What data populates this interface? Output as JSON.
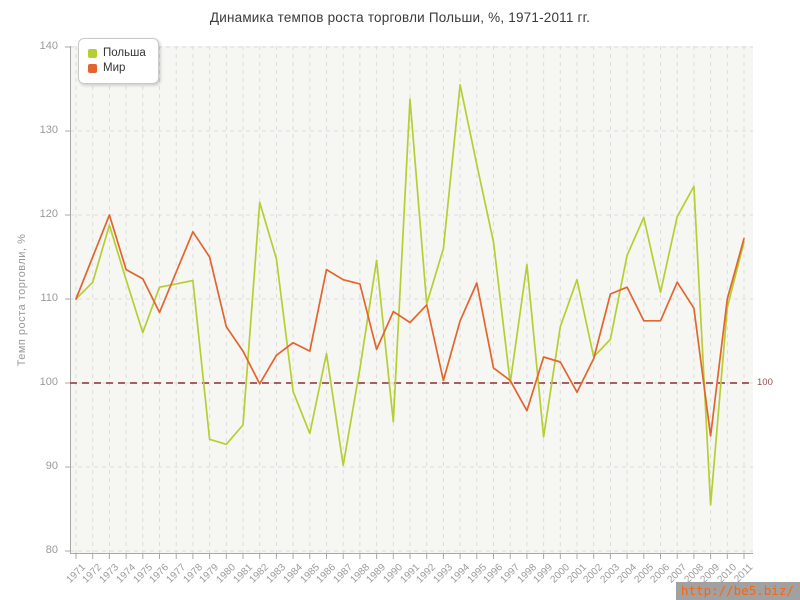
{
  "title": "Динамика темпов роста торговли Польши, %, 1971-2011 гг.",
  "y_axis_title": "Темп роста торговли, %",
  "watermark": "http://be5.biz/",
  "reference_line": {
    "value": 100,
    "label": "100",
    "color": "#9a4a50"
  },
  "colors": {
    "poland_line": "#b5cf33",
    "world_line": "#e2652f",
    "plot_background": "#f6f6f2",
    "gridline": "#dcdcdc",
    "axis": "#a8a8a8",
    "tick_text": "#9a9a9a",
    "title_text": "#3a3a3a"
  },
  "chart_data": {
    "type": "line",
    "title": "Динамика темпов роста торговли Польши, %, 1971-2011 гг.",
    "xlabel": "",
    "ylabel": "Темп роста торговли, %",
    "ylim": [
      80,
      140
    ],
    "yticks": [
      80,
      90,
      100,
      110,
      120,
      130,
      140
    ],
    "grid": true,
    "legend_position": "top-left",
    "x": [
      1971,
      1972,
      1973,
      1974,
      1975,
      1976,
      1977,
      1978,
      1979,
      1980,
      1981,
      1982,
      1983,
      1984,
      1985,
      1986,
      1987,
      1988,
      1989,
      1990,
      1991,
      1992,
      1993,
      1994,
      1995,
      1996,
      1997,
      1998,
      1999,
      2000,
      2001,
      2002,
      2003,
      2004,
      2005,
      2006,
      2007,
      2008,
      2009,
      2010,
      2011
    ],
    "series": [
      {
        "name": "Польша",
        "color": "#b5cf33",
        "values": [
          110,
          112,
          118.8,
          112.3,
          106,
          111.4,
          111.8,
          112.2,
          93.3,
          92.7,
          95,
          121.5,
          114.8,
          99,
          94,
          103.5,
          90.2,
          101.7,
          114.6,
          95.4,
          133.8,
          109.4,
          116,
          135.5,
          126,
          116.8,
          100,
          114.1,
          93.6,
          106.7,
          112.3,
          103.1,
          105.2,
          115.2,
          119.7,
          110.8,
          119.8,
          123.4,
          85.5,
          109,
          116.8
        ]
      },
      {
        "name": "Мир",
        "color": "#e2652f",
        "values": [
          110,
          115,
          120,
          113.5,
          112.4,
          108.4,
          113.2,
          118,
          115,
          106.7,
          103.8,
          99.9,
          103.3,
          104.8,
          103.8,
          113.5,
          112.3,
          111.8,
          104,
          108.5,
          107.2,
          109.3,
          100.3,
          107.4,
          111.9,
          101.8,
          100.3,
          96.7,
          103.1,
          102.5,
          98.9,
          102.9,
          110.6,
          111.4,
          107.4,
          107.4,
          112,
          108.9,
          93.7,
          110,
          117.2
        ]
      }
    ]
  }
}
